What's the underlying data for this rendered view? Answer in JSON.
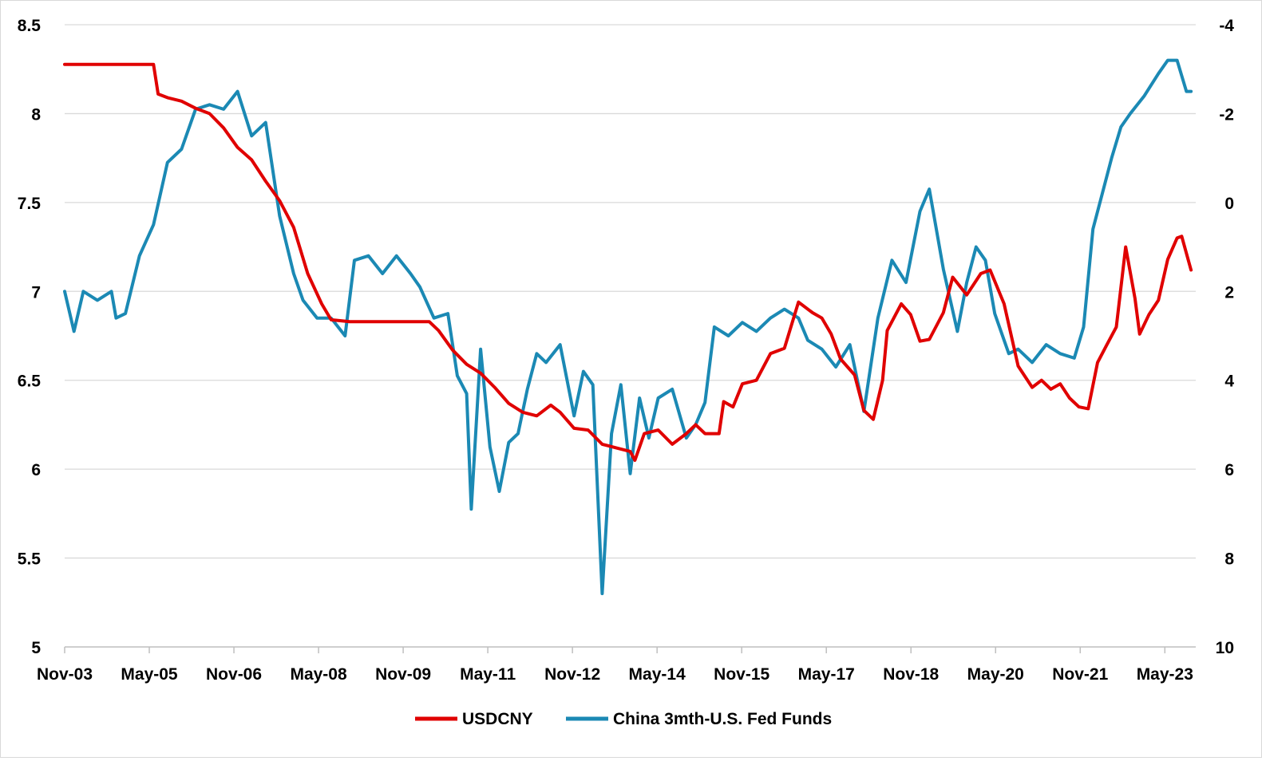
{
  "chart_data": {
    "type": "line",
    "x_tick_labels": [
      "Nov-03",
      "May-05",
      "Nov-06",
      "May-08",
      "Nov-09",
      "May-11",
      "Nov-12",
      "May-14",
      "Nov-15",
      "May-17",
      "Nov-18",
      "May-20",
      "Nov-21",
      "May-23"
    ],
    "x_range": [
      "2003-11",
      "2024-01"
    ],
    "y_left": {
      "ticks": [
        "8.5",
        "8",
        "7.5",
        "7",
        "6.5",
        "6",
        "5.5",
        "5"
      ],
      "ylim": [
        5,
        8.5
      ]
    },
    "y_right": {
      "ticks": [
        "-4",
        "-2",
        "0",
        "2",
        "4",
        "6",
        "8",
        "10"
      ],
      "ylim": [
        -4,
        10
      ],
      "inverted": true
    },
    "grid": "horizontal",
    "legend_position": "bottom",
    "series": [
      {
        "name": "USDCNY",
        "axis": "left",
        "color": "#e00000",
        "points": [
          [
            "2003-11",
            8.277
          ],
          [
            "2004-06",
            8.277
          ],
          [
            "2005-06",
            8.277
          ],
          [
            "2005-07",
            8.11
          ],
          [
            "2005-09",
            8.09
          ],
          [
            "2005-12",
            8.07
          ],
          [
            "2006-03",
            8.03
          ],
          [
            "2006-06",
            8.0
          ],
          [
            "2006-09",
            7.92
          ],
          [
            "2006-12",
            7.81
          ],
          [
            "2007-03",
            7.74
          ],
          [
            "2007-06",
            7.62
          ],
          [
            "2007-09",
            7.51
          ],
          [
            "2007-12",
            7.36
          ],
          [
            "2008-03",
            7.1
          ],
          [
            "2008-06",
            6.93
          ],
          [
            "2008-08",
            6.84
          ],
          [
            "2008-12",
            6.83
          ],
          [
            "2009-06",
            6.83
          ],
          [
            "2009-12",
            6.83
          ],
          [
            "2010-05",
            6.83
          ],
          [
            "2010-07",
            6.78
          ],
          [
            "2010-10",
            6.67
          ],
          [
            "2011-01",
            6.59
          ],
          [
            "2011-04",
            6.54
          ],
          [
            "2011-07",
            6.46
          ],
          [
            "2011-10",
            6.37
          ],
          [
            "2012-01",
            6.32
          ],
          [
            "2012-04",
            6.3
          ],
          [
            "2012-07",
            6.36
          ],
          [
            "2012-09",
            6.32
          ],
          [
            "2012-12",
            6.23
          ],
          [
            "2013-03",
            6.22
          ],
          [
            "2013-06",
            6.14
          ],
          [
            "2013-09",
            6.12
          ],
          [
            "2013-12",
            6.1
          ],
          [
            "2014-01",
            6.05
          ],
          [
            "2014-03",
            6.2
          ],
          [
            "2014-06",
            6.22
          ],
          [
            "2014-09",
            6.14
          ],
          [
            "2014-12",
            6.2
          ],
          [
            "2015-02",
            6.25
          ],
          [
            "2015-04",
            6.2
          ],
          [
            "2015-07",
            6.2
          ],
          [
            "2015-08",
            6.38
          ],
          [
            "2015-10",
            6.35
          ],
          [
            "2015-12",
            6.48
          ],
          [
            "2016-03",
            6.5
          ],
          [
            "2016-06",
            6.65
          ],
          [
            "2016-09",
            6.68
          ],
          [
            "2016-12",
            6.94
          ],
          [
            "2017-03",
            6.88
          ],
          [
            "2017-05",
            6.85
          ],
          [
            "2017-07",
            6.76
          ],
          [
            "2017-09",
            6.62
          ],
          [
            "2017-12",
            6.53
          ],
          [
            "2018-02",
            6.33
          ],
          [
            "2018-04",
            6.28
          ],
          [
            "2018-06",
            6.5
          ],
          [
            "2018-07",
            6.78
          ],
          [
            "2018-10",
            6.93
          ],
          [
            "2018-12",
            6.87
          ],
          [
            "2019-02",
            6.72
          ],
          [
            "2019-04",
            6.73
          ],
          [
            "2019-07",
            6.88
          ],
          [
            "2019-09",
            7.08
          ],
          [
            "2019-12",
            6.98
          ],
          [
            "2020-03",
            7.1
          ],
          [
            "2020-05",
            7.12
          ],
          [
            "2020-08",
            6.93
          ],
          [
            "2020-11",
            6.58
          ],
          [
            "2021-02",
            6.46
          ],
          [
            "2021-04",
            6.5
          ],
          [
            "2021-06",
            6.45
          ],
          [
            "2021-08",
            6.48
          ],
          [
            "2021-10",
            6.4
          ],
          [
            "2021-12",
            6.35
          ],
          [
            "2022-02",
            6.34
          ],
          [
            "2022-04",
            6.6
          ],
          [
            "2022-06",
            6.7
          ],
          [
            "2022-08",
            6.8
          ],
          [
            "2022-10",
            7.25
          ],
          [
            "2022-12",
            6.96
          ],
          [
            "2023-01",
            6.76
          ],
          [
            "2023-03",
            6.87
          ],
          [
            "2023-05",
            6.95
          ],
          [
            "2023-07",
            7.18
          ],
          [
            "2023-09",
            7.3
          ],
          [
            "2023-10",
            7.31
          ],
          [
            "2023-12",
            7.12
          ]
        ]
      },
      {
        "name": "China 3mth-U.S. Fed Funds",
        "axis": "right",
        "color": "#1b89b4",
        "points": [
          [
            "2003-11",
            2.0
          ],
          [
            "2004-01",
            2.9
          ],
          [
            "2004-03",
            2.0
          ],
          [
            "2004-06",
            2.2
          ],
          [
            "2004-09",
            2.0
          ],
          [
            "2004-10",
            2.6
          ],
          [
            "2004-12",
            2.5
          ],
          [
            "2005-03",
            1.2
          ],
          [
            "2005-06",
            0.5
          ],
          [
            "2005-09",
            -0.9
          ],
          [
            "2005-12",
            -1.2
          ],
          [
            "2006-03",
            -2.1
          ],
          [
            "2006-06",
            -2.2
          ],
          [
            "2006-09",
            -2.1
          ],
          [
            "2006-12",
            -2.5
          ],
          [
            "2007-03",
            -1.5
          ],
          [
            "2007-06",
            -1.8
          ],
          [
            "2007-09",
            0.3
          ],
          [
            "2007-12",
            1.6
          ],
          [
            "2008-02",
            2.2
          ],
          [
            "2008-05",
            2.6
          ],
          [
            "2008-08",
            2.6
          ],
          [
            "2008-11",
            3.0
          ],
          [
            "2009-01",
            1.3
          ],
          [
            "2009-04",
            1.2
          ],
          [
            "2009-07",
            1.6
          ],
          [
            "2009-10",
            1.2
          ],
          [
            "2010-01",
            1.6
          ],
          [
            "2010-03",
            1.9
          ],
          [
            "2010-06",
            2.6
          ],
          [
            "2010-09",
            2.5
          ],
          [
            "2010-11",
            3.9
          ],
          [
            "2011-01",
            4.3
          ],
          [
            "2011-02",
            6.9
          ],
          [
            "2011-04",
            3.3
          ],
          [
            "2011-06",
            5.5
          ],
          [
            "2011-08",
            6.5
          ],
          [
            "2011-10",
            5.4
          ],
          [
            "2011-12",
            5.2
          ],
          [
            "2012-02",
            4.2
          ],
          [
            "2012-04",
            3.4
          ],
          [
            "2012-06",
            3.6
          ],
          [
            "2012-09",
            3.2
          ],
          [
            "2012-12",
            4.8
          ],
          [
            "2013-02",
            3.8
          ],
          [
            "2013-04",
            4.1
          ],
          [
            "2013-06",
            8.8
          ],
          [
            "2013-08",
            5.2
          ],
          [
            "2013-10",
            4.1
          ],
          [
            "2013-12",
            6.1
          ],
          [
            "2014-02",
            4.4
          ],
          [
            "2014-04",
            5.3
          ],
          [
            "2014-06",
            4.4
          ],
          [
            "2014-09",
            4.2
          ],
          [
            "2014-12",
            5.3
          ],
          [
            "2015-02",
            5.0
          ],
          [
            "2015-04",
            4.5
          ],
          [
            "2015-06",
            2.8
          ],
          [
            "2015-09",
            3.0
          ],
          [
            "2015-12",
            2.7
          ],
          [
            "2016-03",
            2.9
          ],
          [
            "2016-06",
            2.6
          ],
          [
            "2016-09",
            2.4
          ],
          [
            "2016-12",
            2.6
          ],
          [
            "2017-02",
            3.1
          ],
          [
            "2017-05",
            3.3
          ],
          [
            "2017-08",
            3.7
          ],
          [
            "2017-11",
            3.2
          ],
          [
            "2018-02",
            4.7
          ],
          [
            "2018-05",
            2.6
          ],
          [
            "2018-08",
            1.3
          ],
          [
            "2018-11",
            1.8
          ],
          [
            "2019-02",
            0.2
          ],
          [
            "2019-04",
            -0.3
          ],
          [
            "2019-07",
            1.5
          ],
          [
            "2019-10",
            2.9
          ],
          [
            "2019-12",
            1.8
          ],
          [
            "2020-02",
            1.0
          ],
          [
            "2020-04",
            1.3
          ],
          [
            "2020-06",
            2.5
          ],
          [
            "2020-09",
            3.4
          ],
          [
            "2020-11",
            3.3
          ],
          [
            "2021-02",
            3.6
          ],
          [
            "2021-05",
            3.2
          ],
          [
            "2021-08",
            3.4
          ],
          [
            "2021-11",
            3.5
          ],
          [
            "2022-01",
            2.8
          ],
          [
            "2022-03",
            0.6
          ],
          [
            "2022-05",
            -0.2
          ],
          [
            "2022-07",
            -1.0
          ],
          [
            "2022-09",
            -1.7
          ],
          [
            "2022-11",
            -2.0
          ],
          [
            "2023-02",
            -2.4
          ],
          [
            "2023-05",
            -2.9
          ],
          [
            "2023-07",
            -3.2
          ],
          [
            "2023-09",
            -3.2
          ],
          [
            "2023-11",
            -2.5
          ],
          [
            "2023-12",
            -2.5
          ]
        ]
      }
    ]
  }
}
